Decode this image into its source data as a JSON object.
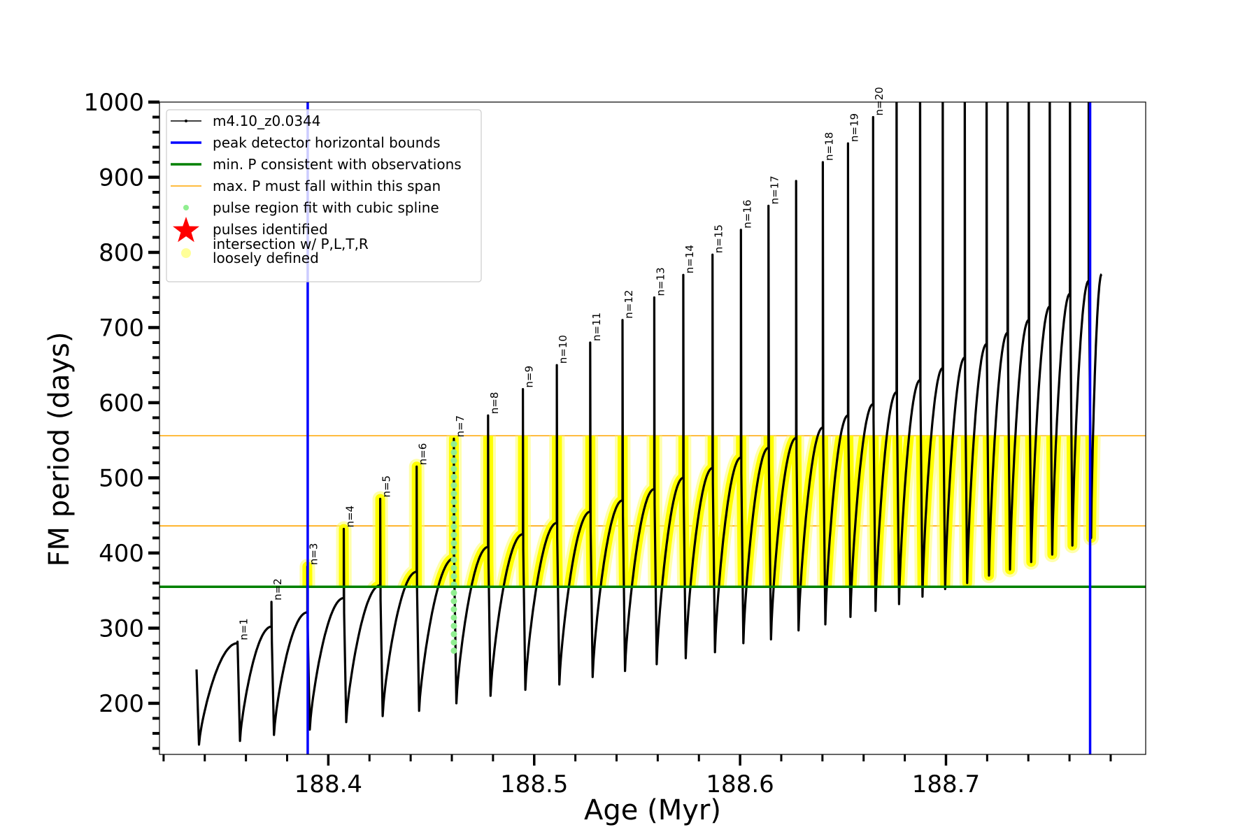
{
  "chart_data": {
    "type": "line",
    "xlabel": "Age (Myr)",
    "ylabel": "FM period (days)",
    "xlim": [
      188.318,
      188.797
    ],
    "ylim": [
      132,
      1000
    ],
    "xticks": [
      188.4,
      188.5,
      188.6,
      188.7
    ],
    "xtick_labels": [
      "188.4",
      "188.5",
      "188.6",
      "188.7"
    ],
    "yticks": [
      200,
      300,
      400,
      500,
      600,
      700,
      800,
      900,
      1000
    ],
    "ytick_labels": [
      "200",
      "300",
      "400",
      "500",
      "600",
      "700",
      "800",
      "900",
      "1000"
    ],
    "grid": false,
    "legend_placement": "upper-left",
    "legend": [
      {
        "label": "m4.10_z0.0344",
        "marker": "line-dot",
        "color": "#000000"
      },
      {
        "label": "peak detector horizontal bounds",
        "marker": "line",
        "color": "#0000ff"
      },
      {
        "label": "min. P consistent with observations",
        "marker": "line",
        "color": "#008000"
      },
      {
        "label": "max. P must fall within this span",
        "marker": "thin-line",
        "color": "#ffa500"
      },
      {
        "label": "pulse region fit with cubic spline",
        "marker": "dot",
        "color": "#90ee90"
      },
      {
        "label": "pulses identified",
        "marker": "star",
        "color": "#ff0000"
      },
      {
        "label": "intersection w/ P,L,T,R\nloosely defined",
        "label_lines": [
          "intersection w/ P,L,T,R",
          "loosely defined"
        ],
        "marker": "dot",
        "color": "#ffff99"
      }
    ],
    "vlines": {
      "name": "peak detector horizontal bounds",
      "x": [
        188.39,
        188.77
      ],
      "color": "#0000ff"
    },
    "hline_min": {
      "name": "min. P consistent with observations",
      "y": 355,
      "color": "#008000"
    },
    "hlines_max": {
      "name": "max. P must fall within this span",
      "y": [
        436,
        556
      ],
      "color": "#ffa500"
    },
    "intersection_band": [
      355,
      556
    ],
    "spline_pulse": {
      "label": "n=7",
      "y_range": [
        270,
        550
      ],
      "color": "#90ee90"
    },
    "series": {
      "name": "m4.10_z0.0344",
      "start": {
        "age": 188.336,
        "period": 245,
        "min": 145
      },
      "end": {
        "age": 188.7756,
        "period": 771
      },
      "pulses": [
        {
          "age": 188.3559,
          "peak": 280,
          "spike": 282,
          "min": 150,
          "label": "n=1"
        },
        {
          "age": 188.3724,
          "peak": 302,
          "spike": 335,
          "min": 158,
          "label": "n=2"
        },
        {
          "age": 188.3898,
          "peak": 321,
          "spike": 382,
          "min": 165,
          "label": "n=3"
        },
        {
          "age": 188.4075,
          "peak": 340,
          "spike": 432,
          "min": 175,
          "label": "n=4"
        },
        {
          "age": 188.4252,
          "peak": 357,
          "spike": 472,
          "min": 183,
          "label": "n=5"
        },
        {
          "age": 188.4429,
          "peak": 375,
          "spike": 515,
          "min": 190,
          "label": "n=6"
        },
        {
          "age": 188.461,
          "peak": 393,
          "spike": 552,
          "min": 200,
          "label": "n=7"
        },
        {
          "age": 188.4776,
          "peak": 408,
          "spike": 583,
          "min": 210,
          "label": "n=8"
        },
        {
          "age": 188.4945,
          "peak": 425,
          "spike": 618,
          "min": 218,
          "label": "n=9"
        },
        {
          "age": 188.511,
          "peak": 440,
          "spike": 650,
          "min": 225,
          "label": "n=10"
        },
        {
          "age": 188.5272,
          "peak": 455,
          "spike": 680,
          "min": 235,
          "label": "n=11"
        },
        {
          "age": 188.5429,
          "peak": 470,
          "spike": 710,
          "min": 243,
          "label": "n=12"
        },
        {
          "age": 188.5583,
          "peak": 485,
          "spike": 740,
          "min": 252,
          "label": "n=13"
        },
        {
          "age": 188.5724,
          "peak": 500,
          "spike": 770,
          "min": 260,
          "label": "n=14"
        },
        {
          "age": 188.5866,
          "peak": 513,
          "spike": 797,
          "min": 268,
          "label": "n=15"
        },
        {
          "age": 188.6004,
          "peak": 527,
          "spike": 830,
          "min": 280,
          "label": "n=16"
        },
        {
          "age": 188.6138,
          "peak": 540,
          "spike": 862,
          "min": 285,
          "label": "n=17"
        },
        {
          "age": 188.6272,
          "peak": 553,
          "spike": 895,
          "min": 297,
          "label": ""
        },
        {
          "age": 188.6402,
          "peak": 567,
          "spike": 920,
          "min": 305,
          "label": "n=18"
        },
        {
          "age": 188.6524,
          "peak": 583,
          "spike": 945,
          "min": 315,
          "label": "n=19"
        },
        {
          "age": 188.6646,
          "peak": 598,
          "spike": 980,
          "min": 323,
          "label": "n=20"
        },
        {
          "age": 188.676,
          "peak": 614,
          "spike": 1100,
          "min": 332,
          "label": ""
        },
        {
          "age": 188.6874,
          "peak": 630,
          "spike": 1100,
          "min": 342,
          "label": ""
        },
        {
          "age": 188.6984,
          "peak": 646,
          "spike": 1100,
          "min": 352,
          "label": ""
        },
        {
          "age": 188.7091,
          "peak": 660,
          "spike": 1100,
          "min": 360,
          "label": ""
        },
        {
          "age": 188.7197,
          "peak": 678,
          "spike": 1100,
          "min": 370,
          "label": ""
        },
        {
          "age": 188.7299,
          "peak": 693,
          "spike": 1100,
          "min": 378,
          "label": ""
        },
        {
          "age": 188.7402,
          "peak": 710,
          "spike": 1100,
          "min": 388,
          "label": ""
        },
        {
          "age": 188.7504,
          "peak": 728,
          "spike": 1100,
          "min": 398,
          "label": ""
        },
        {
          "age": 188.7602,
          "peak": 745,
          "spike": 1100,
          "min": 410,
          "label": ""
        },
        {
          "age": 188.7693,
          "peak": 762,
          "spike": 1100,
          "min": 420,
          "label": ""
        }
      ]
    }
  }
}
